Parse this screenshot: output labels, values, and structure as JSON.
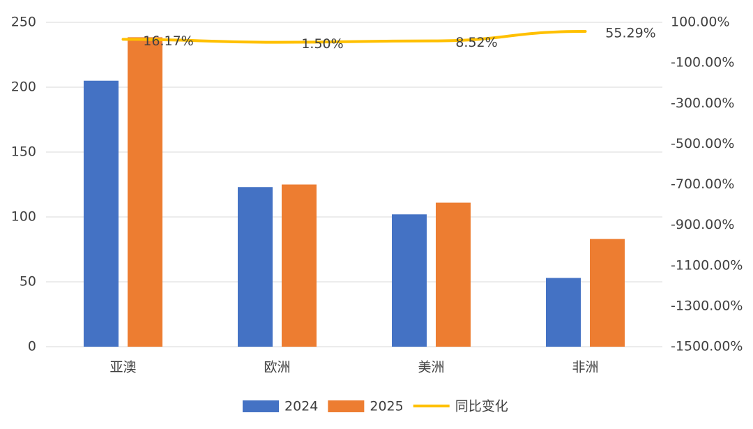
{
  "chart_data": {
    "type": "bar_line",
    "categories": [
      "亚澳",
      "欧洲",
      "美洲",
      "非洲"
    ],
    "series": [
      {
        "name": "2024",
        "color": "#4472c4",
        "type": "bar",
        "values": [
          205,
          123,
          102,
          53
        ]
      },
      {
        "name": "2025",
        "color": "#ed7d31",
        "type": "bar",
        "values": [
          238.5,
          125,
          111,
          83
        ]
      },
      {
        "name": "同比变化",
        "color": "#ffc000",
        "type": "line",
        "axis": "y2",
        "values": [
          16.17,
          1.5,
          8.52,
          55.29
        ],
        "value_labels": [
          "16.17%",
          "1.50%",
          "8.52%",
          "55.29%"
        ]
      }
    ],
    "ylim": [
      0,
      250
    ],
    "yticks": [
      0,
      50,
      100,
      150,
      200,
      250
    ],
    "y2lim": [
      -1500,
      100
    ],
    "y2ticks": [
      {
        "value": 100,
        "label": "100.00%"
      },
      {
        "value": -100,
        "label": "-100.00%"
      },
      {
        "value": -300,
        "label": "-300.00%"
      },
      {
        "value": -500,
        "label": "-500.00%"
      },
      {
        "value": -700,
        "label": "-700.00%"
      },
      {
        "value": -900,
        "label": "-900.00%"
      },
      {
        "value": -1100,
        "label": "-1100.00%"
      },
      {
        "value": -1300,
        "label": "-1300.00%"
      },
      {
        "value": -1500,
        "label": "-1500.00%"
      }
    ],
    "grid": true,
    "legend": "bottom"
  }
}
